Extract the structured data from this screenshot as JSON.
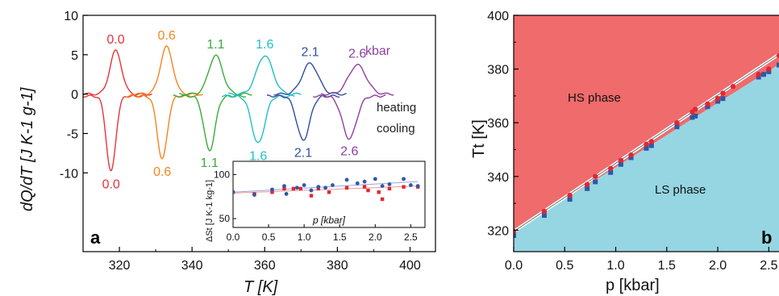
{
  "chart_data": [
    {
      "type": "line",
      "panel_label": "a",
      "xlabel": "T [K]",
      "ylabel": "dQ/dT [J K-1 g-1]",
      "xlim": [
        310,
        407
      ],
      "ylim": [
        -20,
        10
      ],
      "xticks": [
        320,
        340,
        360,
        380,
        400
      ],
      "yticks": [
        -10,
        -5,
        0,
        5,
        10
      ],
      "heating_label": "heating",
      "cooling_label": "cooling",
      "unit_label": "kbar",
      "series": [
        {
          "pressure": "0.0",
          "color": "#e8333a",
          "heat_center": 319.0,
          "heat_peak": 5.5,
          "cool_center": 317.7,
          "cool_peak": -9.6,
          "width": 1.6
        },
        {
          "pressure": "0.6",
          "color": "#f5841f",
          "heat_center": 333.0,
          "heat_peak": 6.0,
          "cool_center": 331.8,
          "cool_peak": -8.0,
          "width": 1.7
        },
        {
          "pressure": "1.1",
          "color": "#3aab3a",
          "heat_center": 346.5,
          "heat_peak": 4.9,
          "cool_center": 344.8,
          "cool_peak": -6.9,
          "width": 1.9
        },
        {
          "pressure": "1.6",
          "color": "#22bfc4",
          "heat_center": 360.0,
          "heat_peak": 4.9,
          "cool_center": 358.2,
          "cool_peak": -6.0,
          "width": 2.2
        },
        {
          "pressure": "2.1",
          "color": "#2e4fa3",
          "heat_center": 372.5,
          "heat_peak": 3.9,
          "cool_center": 370.6,
          "cool_peak": -5.6,
          "width": 2.2
        },
        {
          "pressure": "2.6",
          "color": "#8e3fa0",
          "heat_center": 385.5,
          "heat_peak": 3.7,
          "cool_center": 383.3,
          "cool_peak": -5.4,
          "width": 2.4
        }
      ],
      "inset": {
        "ylabel": "ΔSt [J K-1 kg-1]",
        "xlabel": "p [kbar]",
        "xlim": [
          0,
          2.7
        ],
        "ylim": [
          40,
          115
        ],
        "xticks": [
          0.0,
          0.5,
          1.0,
          1.5,
          2.0,
          2.5
        ],
        "yticks": [
          50,
          100
        ],
        "blue_points": [
          [
            0.0,
            80
          ],
          [
            0.3,
            77
          ],
          [
            0.55,
            83
          ],
          [
            0.72,
            87
          ],
          [
            0.75,
            78
          ],
          [
            0.9,
            85
          ],
          [
            1.0,
            88
          ],
          [
            1.1,
            82
          ],
          [
            1.2,
            86
          ],
          [
            1.3,
            85
          ],
          [
            1.4,
            88
          ],
          [
            1.6,
            94
          ],
          [
            1.75,
            90
          ],
          [
            1.85,
            92
          ],
          [
            2.0,
            95
          ],
          [
            2.1,
            87
          ],
          [
            2.2,
            89
          ],
          [
            2.4,
            95
          ],
          [
            2.5,
            88
          ],
          [
            2.6,
            87
          ]
        ],
        "red_points": [
          [
            0.0,
            80
          ],
          [
            0.3,
            78
          ],
          [
            0.55,
            80
          ],
          [
            0.72,
            84
          ],
          [
            0.85,
            84
          ],
          [
            0.95,
            84
          ],
          [
            1.1,
            76
          ],
          [
            1.2,
            84
          ],
          [
            1.35,
            80
          ],
          [
            1.6,
            85
          ],
          [
            1.85,
            86
          ],
          [
            1.9,
            82
          ],
          [
            2.05,
            80
          ],
          [
            2.1,
            72
          ],
          [
            2.2,
            84
          ],
          [
            2.4,
            86
          ],
          [
            2.6,
            86
          ]
        ],
        "blue_fit": [
          [
            0.0,
            80
          ],
          [
            2.6,
            92
          ]
        ],
        "red_fit": [
          [
            0.0,
            79
          ],
          [
            2.6,
            87
          ]
        ]
      }
    },
    {
      "type": "scatter",
      "panel_label": "b",
      "xlabel": "p [kbar]",
      "ylabel": "Tt [K]",
      "xlim": [
        0,
        2.6
      ],
      "ylim": [
        312,
        400
      ],
      "xticks": [
        0.0,
        0.5,
        1.0,
        1.5,
        2.0,
        2.5
      ],
      "yticks": [
        320,
        340,
        360,
        380,
        400
      ],
      "hs_label": "HS phase",
      "ls_label": "LS phase",
      "hs_color": "#ef6b6c",
      "ls_color": "#95d6e2",
      "boundary": [
        [
          0.0,
          319.5
        ],
        [
          2.6,
          385.5
        ]
      ],
      "red_points": [
        [
          0.0,
          319.5
        ],
        [
          0.3,
          327
        ],
        [
          0.55,
          333
        ],
        [
          0.72,
          337
        ],
        [
          0.8,
          340
        ],
        [
          0.95,
          343
        ],
        [
          1.05,
          346
        ],
        [
          1.15,
          348
        ],
        [
          1.3,
          352
        ],
        [
          1.35,
          353
        ],
        [
          1.6,
          360
        ],
        [
          1.75,
          364
        ],
        [
          1.78,
          365
        ],
        [
          1.9,
          367
        ],
        [
          2.0,
          369
        ],
        [
          2.05,
          371
        ],
        [
          2.15,
          373.5
        ],
        [
          2.4,
          378
        ],
        [
          2.5,
          380
        ],
        [
          2.6,
          385
        ]
      ],
      "blue_points": [
        [
          0.0,
          318
        ],
        [
          0.3,
          325.5
        ],
        [
          0.55,
          331.5
        ],
        [
          0.72,
          335.5
        ],
        [
          0.8,
          338
        ],
        [
          0.95,
          341.5
        ],
        [
          1.05,
          344.5
        ],
        [
          1.15,
          347
        ],
        [
          1.3,
          350.5
        ],
        [
          1.35,
          351.5
        ],
        [
          1.6,
          358.5
        ],
        [
          1.75,
          362
        ],
        [
          1.78,
          362.5
        ],
        [
          1.9,
          366
        ],
        [
          2.0,
          368
        ],
        [
          2.05,
          369
        ],
        [
          2.4,
          377
        ],
        [
          2.45,
          378
        ],
        [
          2.5,
          379
        ],
        [
          2.6,
          381.5
        ]
      ]
    }
  ]
}
